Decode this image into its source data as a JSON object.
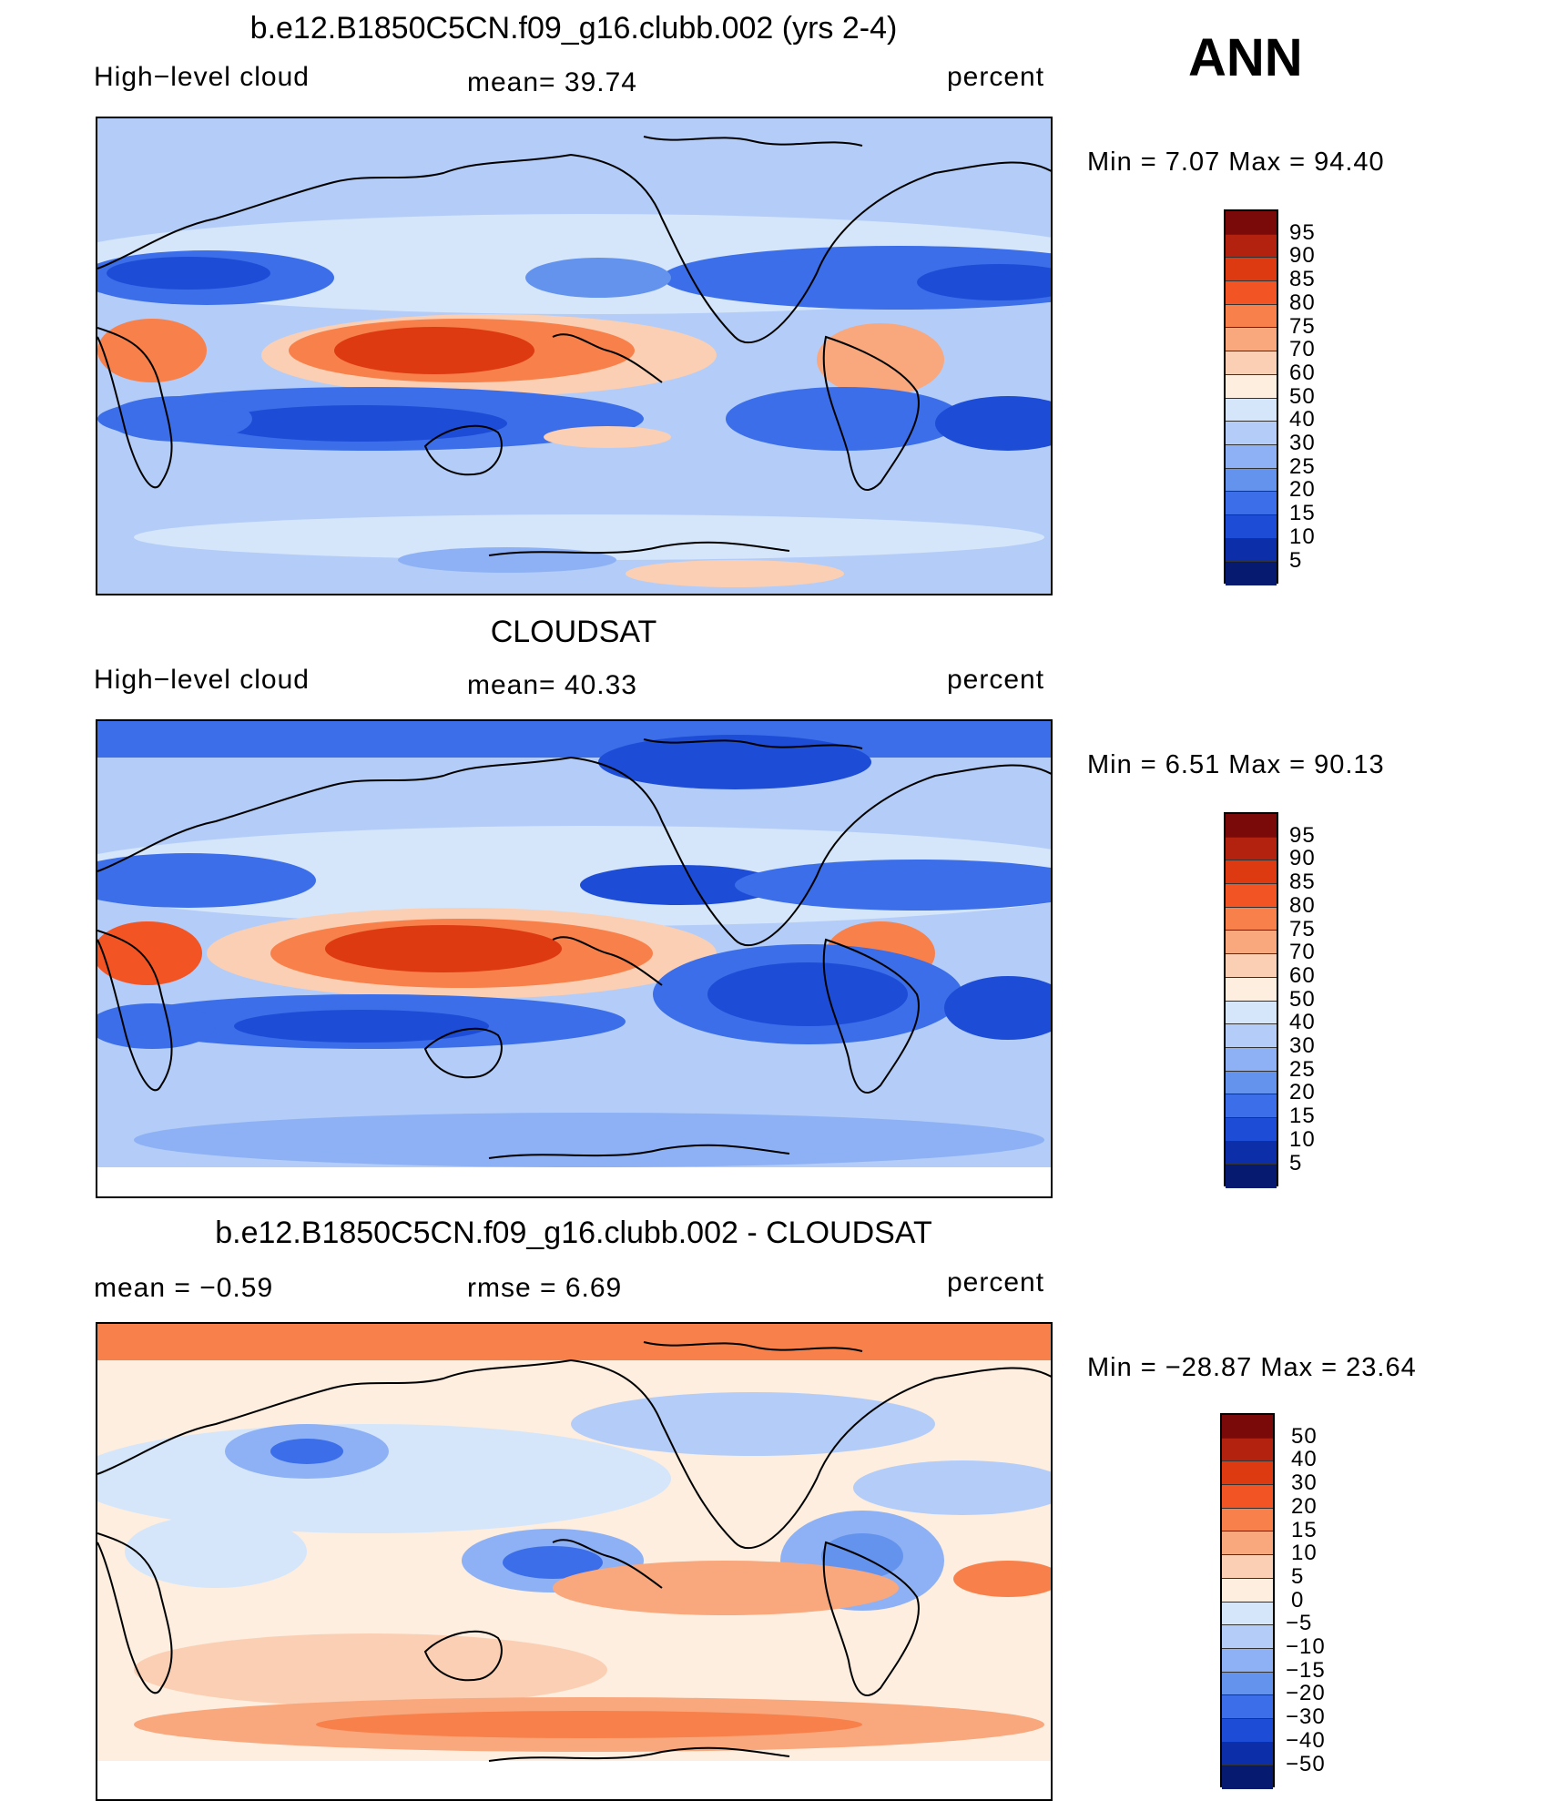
{
  "season": "ANN",
  "units": "percent",
  "panels": [
    {
      "title": "b.e12.B1850C5CN.f09_g16.clubb.002 (yrs 2-4)",
      "left_label": "High−level cloud",
      "center_label": "mean=   39.74",
      "right_label": "percent",
      "minmax": "Min  =     7.07  Max  =    94.40"
    },
    {
      "title": "CLOUDSAT",
      "left_label": "High−level cloud",
      "center_label": "mean=   40.33",
      "right_label": "percent",
      "minmax": "Min  =     6.51  Max  =    90.13"
    },
    {
      "title": "b.e12.B1850C5CN.f09_g16.clubb.002 - CLOUDSAT",
      "left_label": "mean  =    −0.59",
      "center_label": "rmse  =     6.69",
      "right_label": "percent",
      "minmax": "Min  = −28.87  Max  =    23.64"
    }
  ],
  "chart_data": [
    {
      "type": "heatmap",
      "title": "b.e12.B1850C5CN.f09_g16.clubb.002 (yrs 2-4)",
      "variable": "High-level cloud",
      "units": "percent",
      "mean": 39.74,
      "min": 7.07,
      "max": 94.4,
      "colorbar_levels": [
        "95",
        "90",
        "85",
        "80",
        "75",
        "70",
        "60",
        "50",
        "40",
        "30",
        "25",
        "20",
        "15",
        "10",
        "5"
      ],
      "colorbar_colors": [
        "#7a0a0a",
        "#b3220f",
        "#dd3a12",
        "#f25423",
        "#f8804a",
        "#f9a77d",
        "#fbcfb3",
        "#fdeedf",
        "#d5e6fb",
        "#b3cdf8",
        "#8db1f4",
        "#6493ee",
        "#3b6ee8",
        "#1d4cd6",
        "#0c2ea8",
        "#061a70"
      ]
    },
    {
      "type": "heatmap",
      "title": "CLOUDSAT",
      "variable": "High-level cloud",
      "units": "percent",
      "mean": 40.33,
      "min": 6.51,
      "max": 90.13,
      "colorbar_levels": [
        "95",
        "90",
        "85",
        "80",
        "75",
        "70",
        "60",
        "50",
        "40",
        "30",
        "25",
        "20",
        "15",
        "10",
        "5"
      ],
      "colorbar_colors": [
        "#7a0a0a",
        "#b3220f",
        "#dd3a12",
        "#f25423",
        "#f8804a",
        "#f9a77d",
        "#fbcfb3",
        "#fdeedf",
        "#d5e6fb",
        "#b3cdf8",
        "#8db1f4",
        "#6493ee",
        "#3b6ee8",
        "#1d4cd6",
        "#0c2ea8",
        "#061a70"
      ]
    },
    {
      "type": "heatmap",
      "title": "b.e12.B1850C5CN.f09_g16.clubb.002 - CLOUDSAT",
      "units": "percent",
      "mean": -0.59,
      "rmse": 6.69,
      "min": -28.87,
      "max": 23.64,
      "colorbar_levels": [
        "50",
        "40",
        "30",
        "20",
        "15",
        "10",
        "5",
        "0",
        "−5",
        "−10",
        "−15",
        "−20",
        "−30",
        "−40",
        "−50"
      ],
      "colorbar_colors": [
        "#7a0a0a",
        "#b3220f",
        "#dd3a12",
        "#f25423",
        "#f8804a",
        "#f9a77d",
        "#fbcfb3",
        "#fdeedf",
        "#d5e6fb",
        "#b3cdf8",
        "#8db1f4",
        "#6493ee",
        "#3b6ee8",
        "#1d4cd6",
        "#0c2ea8",
        "#061a70"
      ]
    }
  ]
}
